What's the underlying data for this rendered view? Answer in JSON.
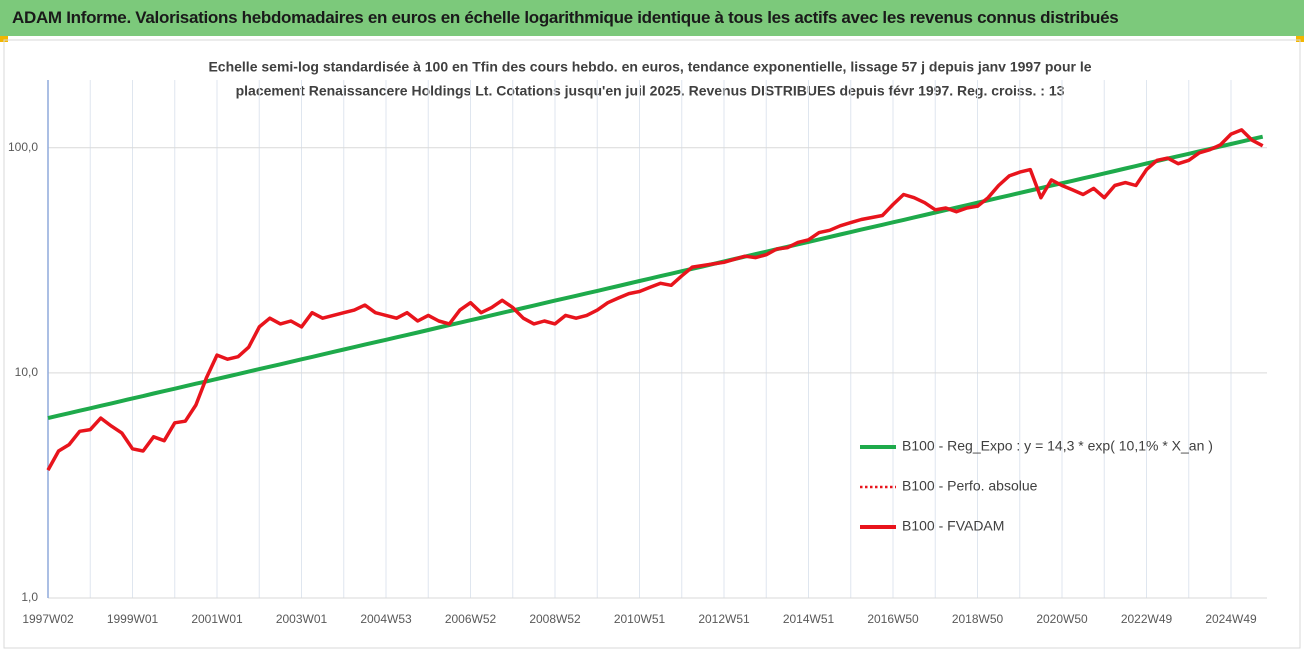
{
  "banner": "ADAM Informe. Valorisations hebdomadaires en euros en échelle logarithmique identique à tous les actifs avec les revenus connus distribués",
  "chart_data": {
    "type": "line",
    "title": [
      "Echelle semi-log standardisée à 100 en Tfin des cours hebdo. en euros, tendance exponentielle, lissage 57 j depuis janv 1997 pour le",
      "placement Renaissancere Holdings Lt. Cotations jusqu'en juil 2025. Revenus DISTRIBUES depuis févr 1997. Reg. croiss. : 13"
    ],
    "log_scale": true,
    "grid": true,
    "legend_position": "right",
    "ylim": [
      1,
      200
    ],
    "yticks": [
      {
        "value": 1,
        "label": "1,0"
      },
      {
        "value": 10,
        "label": "10,0"
      },
      {
        "value": 100,
        "label": "100,0"
      }
    ],
    "categories": [
      "1997W02",
      null,
      null,
      null,
      null,
      null,
      null,
      null,
      "1999W01",
      null,
      null,
      null,
      null,
      null,
      null,
      null,
      "2001W01",
      null,
      null,
      null,
      null,
      null,
      null,
      null,
      "2003W01",
      null,
      null,
      null,
      null,
      null,
      null,
      null,
      "2004W53",
      null,
      null,
      null,
      null,
      null,
      null,
      null,
      "2006W52",
      null,
      null,
      null,
      null,
      null,
      null,
      null,
      "2008W52",
      null,
      null,
      null,
      null,
      null,
      null,
      null,
      "2010W51",
      null,
      null,
      null,
      null,
      null,
      null,
      null,
      "2012W51",
      null,
      null,
      null,
      null,
      null,
      null,
      null,
      "2014W51",
      null,
      null,
      null,
      null,
      null,
      null,
      null,
      "2016W50",
      null,
      null,
      null,
      null,
      null,
      null,
      null,
      "2018W50",
      null,
      null,
      null,
      null,
      null,
      null,
      null,
      "2020W50",
      null,
      null,
      null,
      null,
      null,
      null,
      null,
      "2022W49",
      null,
      null,
      null,
      null,
      null,
      null,
      null,
      "2024W49",
      null,
      null,
      null
    ],
    "series": [
      {
        "name": "B100 - Reg_Expo : y = 14,3 * exp( 10,1% *  X_an )",
        "color": "#1eaa4b",
        "style": "solid",
        "width": 4,
        "values": [
          6.3,
          6.46,
          6.62,
          6.79,
          6.96,
          7.14,
          7.32,
          7.51,
          7.7,
          7.89,
          8.1,
          8.3,
          8.51,
          8.73,
          8.95,
          9.17,
          9.4,
          9.64,
          9.88,
          10.13,
          10.39,
          10.65,
          10.92,
          11.2,
          11.49,
          11.78,
          12.08,
          12.39,
          12.7,
          13.02,
          13.35,
          13.69,
          14.03,
          14.39,
          14.75,
          15.12,
          15.51,
          15.9,
          16.3,
          16.71,
          17.14,
          17.57,
          18.02,
          18.48,
          18.94,
          19.42,
          19.91,
          20.42,
          20.94,
          21.47,
          22.01,
          22.57,
          23.14,
          23.73,
          24.33,
          24.95,
          25.59,
          26.24,
          26.9,
          27.58,
          28.28,
          29.0,
          29.73,
          30.49,
          31.26,
          32.05,
          32.86,
          33.7,
          34.55,
          35.42,
          36.32,
          37.24,
          38.19,
          39.16,
          40.15,
          41.17,
          42.21,
          43.28,
          44.37,
          45.5,
          46.66,
          47.84,
          49.05,
          50.29,
          51.57,
          52.88,
          54.21,
          55.59,
          57.0,
          58.44,
          59.92,
          61.44,
          63.0,
          64.59,
          66.23,
          67.9,
          69.6,
          71.36,
          73.17,
          75.02,
          76.92,
          78.87,
          80.87,
          82.91,
          85.1,
          87.25,
          89.47,
          91.73,
          94.05,
          96.43,
          98.88,
          101.38,
          103.9,
          106.53,
          109.23,
          112.0
        ]
      },
      {
        "name": "B100 - Perfo. absolue",
        "color": "#e8141c",
        "style": "dotted",
        "width": 2,
        "values": [
          3.7,
          4.5,
          4.8,
          5.5,
          5.6,
          6.3,
          5.8,
          5.4,
          4.6,
          4.5,
          5.2,
          5.0,
          6.0,
          6.1,
          7.2,
          9.5,
          12.0,
          11.5,
          11.8,
          13.0,
          16.0,
          17.5,
          16.5,
          17.0,
          16.0,
          18.5,
          17.5,
          18.0,
          18.5,
          19.0,
          20.0,
          18.5,
          18.0,
          17.5,
          18.5,
          17.0,
          18.0,
          17.0,
          16.5,
          19.0,
          20.5,
          18.5,
          19.5,
          21.0,
          19.5,
          17.5,
          16.5,
          17.0,
          16.5,
          18.0,
          17.5,
          18.0,
          19.0,
          20.5,
          21.5,
          22.5,
          23.0,
          24.0,
          25.0,
          24.5,
          27.0,
          29.5,
          30.0,
          30.5,
          31.0,
          32.0,
          33.0,
          32.5,
          33.5,
          35.5,
          36.0,
          38.0,
          39.0,
          42.0,
          43.0,
          45.0,
          46.5,
          48.0,
          49.0,
          50.0,
          56.0,
          62.0,
          60.0,
          57.0,
          53.0,
          54.0,
          52.0,
          54.0,
          55.0,
          60.0,
          68.0,
          75.0,
          78.0,
          80.0,
          60.0,
          72.0,
          68.0,
          65.0,
          62.0,
          66.0,
          60.0,
          68.0,
          70.0,
          68.0,
          80.0,
          88.0,
          90.0,
          85.0,
          88.0,
          95.0,
          98.0,
          103.0,
          115.0,
          120.0,
          108.0,
          102.0
        ]
      },
      {
        "name": "B100 - FVADAM",
        "color": "#e8141c",
        "style": "solid",
        "width": 3.5,
        "values": [
          3.7,
          4.5,
          4.8,
          5.5,
          5.6,
          6.3,
          5.8,
          5.4,
          4.6,
          4.5,
          5.2,
          5.0,
          6.0,
          6.1,
          7.2,
          9.5,
          12.0,
          11.5,
          11.8,
          13.0,
          16.0,
          17.5,
          16.5,
          17.0,
          16.0,
          18.5,
          17.5,
          18.0,
          18.5,
          19.0,
          20.0,
          18.5,
          18.0,
          17.5,
          18.5,
          17.0,
          18.0,
          17.0,
          16.5,
          19.0,
          20.5,
          18.5,
          19.5,
          21.0,
          19.5,
          17.5,
          16.5,
          17.0,
          16.5,
          18.0,
          17.5,
          18.0,
          19.0,
          20.5,
          21.5,
          22.5,
          23.0,
          24.0,
          25.0,
          24.5,
          27.0,
          29.5,
          30.0,
          30.5,
          31.0,
          32.0,
          33.0,
          32.5,
          33.5,
          35.5,
          36.0,
          38.0,
          39.0,
          42.0,
          43.0,
          45.0,
          46.5,
          48.0,
          49.0,
          50.0,
          56.0,
          62.0,
          60.0,
          57.0,
          53.0,
          54.0,
          52.0,
          54.0,
          55.0,
          60.0,
          68.0,
          75.0,
          78.0,
          80.0,
          60.0,
          72.0,
          68.0,
          65.0,
          62.0,
          66.0,
          60.0,
          68.0,
          70.0,
          68.0,
          80.0,
          88.0,
          90.0,
          85.0,
          88.0,
          95.0,
          98.0,
          103.0,
          115.0,
          120.0,
          108.0,
          102.0
        ]
      }
    ]
  }
}
